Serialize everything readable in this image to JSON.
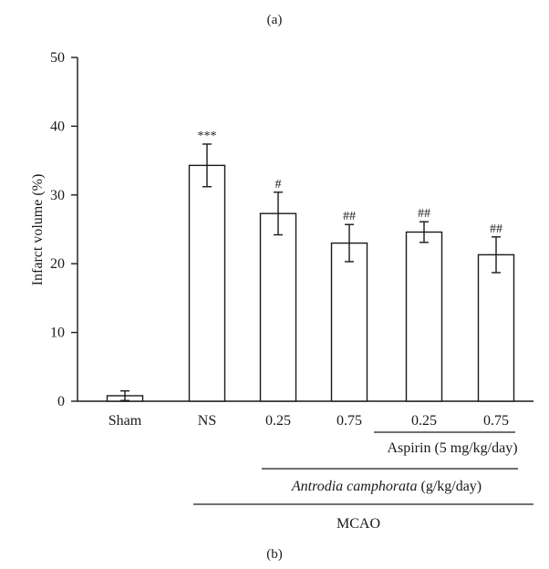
{
  "panel_top": "(a)",
  "panel_bottom": "(b)",
  "groups": {
    "aspirin": "Aspirin (5 mg/kg/day)",
    "antrodia_name": "Antrodia camphorata",
    "antrodia_unit": " (g/kg/day)",
    "mcao": "MCAO"
  },
  "chart_data": {
    "type": "bar",
    "title": "",
    "xlabel": "",
    "ylabel": "Infarct volume (%)",
    "ylim": [
      0,
      50
    ],
    "yticks": [
      0,
      10,
      20,
      30,
      40,
      50
    ],
    "categories": [
      "Sham",
      "NS",
      "0.25",
      "0.75",
      "0.25",
      "0.75"
    ],
    "values": [
      0.8,
      34.3,
      27.3,
      23.0,
      24.6,
      21.3
    ],
    "errors": [
      0.7,
      3.1,
      3.1,
      2.7,
      1.5,
      2.6
    ],
    "significance": [
      "",
      "***",
      "#",
      "##",
      "##",
      "##"
    ],
    "legend": null,
    "grid": false
  }
}
